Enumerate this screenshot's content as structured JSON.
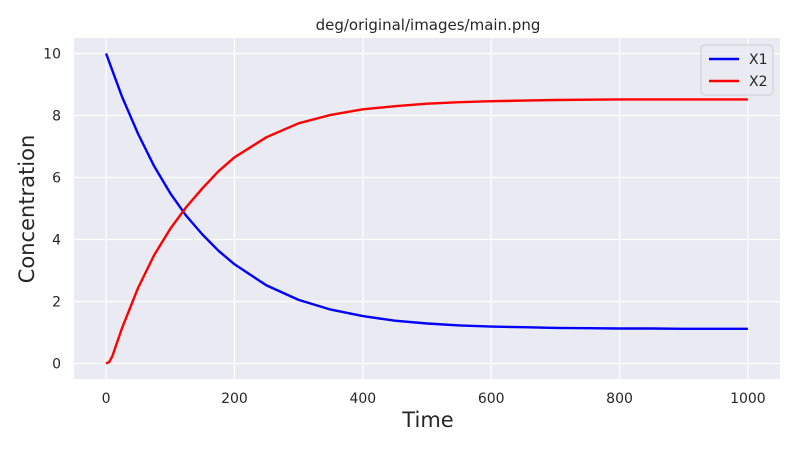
{
  "chart_data": {
    "type": "line",
    "title": "deg/original/images/main.png",
    "xlabel": "Time",
    "ylabel": "Concentration",
    "xlim": [
      -50,
      1050
    ],
    "ylim": [
      -0.5,
      10.5
    ],
    "xticks": [
      0,
      200,
      400,
      600,
      800,
      1000
    ],
    "yticks": [
      0,
      2,
      4,
      6,
      8,
      10
    ],
    "grid": true,
    "legend_position": "top-right",
    "series": [
      {
        "name": "X1",
        "color": "#0000ff",
        "x": [
          0,
          25,
          50,
          75,
          100,
          125,
          150,
          175,
          200,
          250,
          300,
          350,
          400,
          450,
          500,
          550,
          600,
          650,
          700,
          750,
          800,
          850,
          900,
          950,
          1000
        ],
        "y": [
          10.0,
          8.6,
          7.4,
          6.36,
          5.49,
          4.76,
          4.16,
          3.64,
          3.2,
          2.52,
          2.05,
          1.74,
          1.53,
          1.38,
          1.29,
          1.23,
          1.19,
          1.17,
          1.15,
          1.14,
          1.13,
          1.13,
          1.12,
          1.12,
          1.12
        ]
      },
      {
        "name": "X2",
        "color": "#ff0000",
        "x": [
          0,
          5,
          10,
          15,
          25,
          50,
          75,
          100,
          125,
          150,
          175,
          200,
          250,
          300,
          350,
          400,
          450,
          500,
          550,
          600,
          650,
          700,
          750,
          800,
          850,
          900,
          950,
          1000
        ],
        "y": [
          0.0,
          0.05,
          0.25,
          0.55,
          1.15,
          2.45,
          3.5,
          4.35,
          5.05,
          5.65,
          6.2,
          6.65,
          7.3,
          7.75,
          8.02,
          8.2,
          8.3,
          8.38,
          8.43,
          8.46,
          8.48,
          8.5,
          8.51,
          8.52,
          8.52,
          8.52,
          8.52,
          8.52
        ]
      }
    ]
  }
}
